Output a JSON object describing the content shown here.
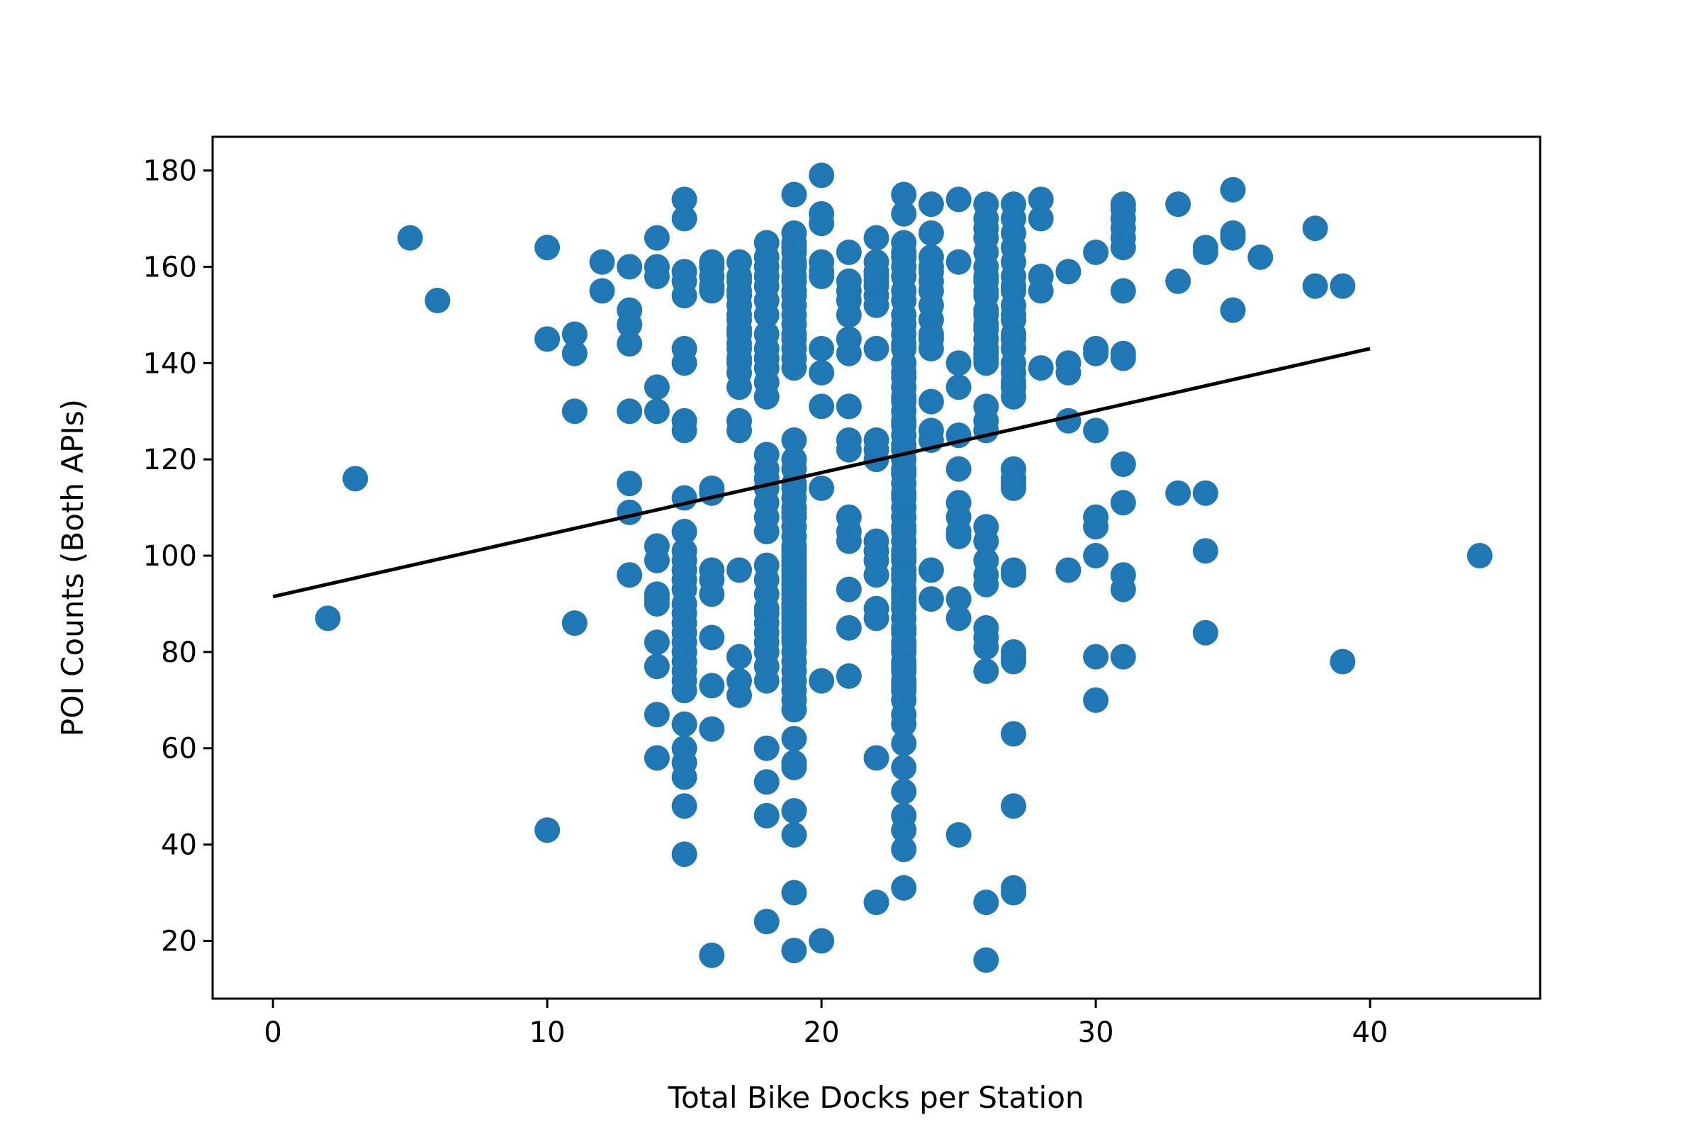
{
  "chart_data": {
    "type": "scatter",
    "title": "",
    "xlabel": "Total Bike Docks per Station",
    "ylabel": "POI Counts (Both APIs)",
    "xlim": [
      -2.2,
      46.2
    ],
    "ylim": [
      8,
      187
    ],
    "xticks": [
      0,
      10,
      20,
      30,
      40
    ],
    "yticks": [
      20,
      40,
      60,
      80,
      100,
      120,
      140,
      160,
      180
    ],
    "grid": false,
    "legend": "none",
    "point_color": "#1f77b4",
    "line_color": "#000000",
    "trend_line": {
      "x": [
        0,
        40
      ],
      "y": [
        91.5,
        143
      ]
    },
    "points": {
      "x": [
        2,
        3,
        5,
        6,
        10,
        10,
        10,
        11,
        11,
        11,
        11,
        12,
        12,
        13,
        13,
        13,
        13,
        13,
        13,
        13,
        13,
        14,
        14,
        14,
        14,
        14,
        14,
        14,
        14,
        14,
        14,
        14,
        14,
        14,
        14,
        15,
        15,
        15,
        15,
        15,
        15,
        15,
        15,
        15,
        15,
        15,
        15,
        15,
        15,
        15,
        15,
        15,
        15,
        15,
        15,
        15,
        15,
        15,
        15,
        15,
        15,
        15,
        15,
        15,
        15,
        15,
        15,
        16,
        16,
        16,
        16,
        16,
        16,
        16,
        16,
        16,
        16,
        16,
        16,
        16,
        16,
        17,
        17,
        17,
        17,
        17,
        17,
        17,
        17,
        17,
        17,
        17,
        17,
        17,
        17,
        17,
        17,
        17,
        17,
        17,
        17,
        17,
        17,
        18,
        18,
        18,
        18,
        18,
        18,
        18,
        18,
        18,
        18,
        18,
        18,
        18,
        18,
        18,
        18,
        18,
        18,
        18,
        18,
        18,
        18,
        18,
        18,
        18,
        18,
        18,
        18,
        18,
        18,
        18,
        18,
        18,
        18,
        18,
        19,
        19,
        19,
        19,
        19,
        19,
        19,
        19,
        19,
        19,
        19,
        19,
        19,
        19,
        19,
        19,
        19,
        19,
        19,
        19,
        19,
        19,
        19,
        19,
        19,
        19,
        19,
        19,
        19,
        19,
        19,
        19,
        19,
        19,
        19,
        19,
        19,
        19,
        19,
        19,
        19,
        19,
        19,
        19,
        19,
        19,
        19,
        19,
        19,
        19,
        19,
        19,
        19,
        19,
        19,
        19,
        19,
        19,
        19,
        19,
        19,
        19,
        19,
        19,
        19,
        20,
        20,
        20,
        20,
        20,
        20,
        20,
        20,
        20,
        20,
        20,
        20,
        21,
        21,
        21,
        21,
        21,
        21,
        21,
        21,
        21,
        21,
        21,
        21,
        21,
        21,
        21,
        21,
        22,
        22,
        22,
        22,
        22,
        22,
        22,
        22,
        22,
        22,
        22,
        22,
        22,
        22,
        22,
        22,
        22,
        22,
        22,
        22,
        23,
        23,
        23,
        23,
        23,
        23,
        23,
        23,
        23,
        23,
        23,
        23,
        23,
        23,
        23,
        23,
        23,
        23,
        23,
        23,
        23,
        23,
        23,
        23,
        23,
        23,
        23,
        23,
        23,
        23,
        23,
        23,
        23,
        23,
        23,
        23,
        23,
        23,
        23,
        23,
        23,
        23,
        23,
        23,
        23,
        23,
        23,
        23,
        23,
        23,
        23,
        23,
        23,
        23,
        23,
        23,
        23,
        23,
        23,
        23,
        23,
        23,
        23,
        23,
        23,
        23,
        23,
        23,
        23,
        23,
        24,
        24,
        24,
        24,
        24,
        24,
        24,
        24,
        24,
        24,
        24,
        24,
        24,
        24,
        24,
        24,
        24,
        25,
        25,
        25,
        25,
        25,
        25,
        25,
        25,
        25,
        25,
        25,
        25,
        25,
        26,
        26,
        26,
        26,
        26,
        26,
        26,
        26,
        26,
        26,
        26,
        26,
        26,
        26,
        26,
        26,
        26,
        26,
        26,
        26,
        26,
        26,
        26,
        26,
        26,
        26,
        26,
        26,
        26,
        26,
        26,
        26,
        26,
        27,
        27,
        27,
        27,
        27,
        27,
        27,
        27,
        27,
        27,
        27,
        27,
        27,
        27,
        27,
        27,
        27,
        27,
        27,
        27,
        27,
        27,
        27,
        27,
        27,
        27,
        27,
        27,
        27,
        27,
        27,
        27,
        28,
        28,
        28,
        28,
        28,
        29,
        29,
        29,
        29,
        29,
        30,
        30,
        30,
        30,
        30,
        30,
        30,
        30,
        30,
        31,
        31,
        31,
        31,
        31,
        31,
        31,
        31,
        31,
        31,
        31,
        31,
        31,
        31,
        33,
        33,
        33,
        34,
        34,
        34,
        34,
        34,
        35,
        35,
        35,
        35,
        36,
        38,
        38,
        39,
        39,
        44
      ],
      "y": [
        87,
        116,
        166,
        153,
        164,
        145,
        43,
        146,
        142,
        130,
        86,
        161,
        155,
        160,
        151,
        148,
        144,
        130,
        115,
        109,
        96,
        166,
        160,
        158,
        135,
        130,
        102,
        99,
        92,
        90,
        82,
        77,
        67,
        58,
        91,
        174,
        170,
        159,
        157,
        154,
        143,
        140,
        128,
        126,
        112,
        105,
        101,
        97,
        95,
        93,
        90,
        88,
        86,
        84,
        82,
        80,
        78,
        76,
        74,
        72,
        65,
        60,
        57,
        54,
        48,
        38,
        99,
        161,
        158,
        155,
        114,
        113,
        97,
        95,
        92,
        83,
        73,
        64,
        17,
        156,
        160,
        161,
        158,
        155,
        152,
        149,
        146,
        143,
        140,
        138,
        135,
        128,
        126,
        97,
        79,
        74,
        71,
        157,
        154,
        150,
        147,
        144,
        141,
        165,
        162,
        158,
        156,
        146,
        143,
        139,
        136,
        133,
        121,
        118,
        114,
        105,
        98,
        95,
        88,
        86,
        82,
        74,
        60,
        53,
        46,
        24,
        160,
        153,
        150,
        141,
        116,
        111,
        108,
        92,
        89,
        84,
        80,
        77,
        175,
        167,
        164,
        161,
        158,
        155,
        152,
        146,
        143,
        139,
        124,
        120,
        115,
        112,
        110,
        108,
        106,
        104,
        102,
        100,
        98,
        96,
        94,
        92,
        90,
        88,
        86,
        84,
        82,
        80,
        78,
        76,
        74,
        72,
        70,
        68,
        62,
        57,
        56,
        47,
        42,
        30,
        18,
        165,
        163,
        160,
        157,
        154,
        150,
        148,
        145,
        141,
        118,
        114,
        109,
        101,
        99,
        97,
        95,
        93,
        91,
        89,
        87,
        85,
        83,
        179,
        171,
        169,
        161,
        159,
        143,
        138,
        131,
        114,
        74,
        20,
        158,
        163,
        157,
        155,
        153,
        145,
        142,
        131,
        124,
        122,
        108,
        105,
        103,
        93,
        85,
        75,
        150,
        166,
        161,
        158,
        156,
        154,
        152,
        143,
        124,
        122,
        120,
        103,
        101,
        99,
        96,
        89,
        87,
        58,
        28,
        159,
        157,
        175,
        171,
        165,
        163,
        160,
        153,
        150,
        146,
        143,
        140,
        137,
        135,
        132,
        130,
        127,
        125,
        122,
        120,
        117,
        115,
        112,
        110,
        108,
        106,
        103,
        101,
        99,
        97,
        95,
        93,
        91,
        89,
        87,
        84,
        82,
        80,
        78,
        76,
        74,
        72,
        70,
        67,
        61,
        56,
        51,
        46,
        43,
        39,
        31,
        162,
        158,
        155,
        148,
        144,
        138,
        133,
        128,
        123,
        118,
        113,
        105,
        100,
        96,
        92,
        90,
        85,
        81,
        77,
        73,
        65,
        173,
        167,
        162,
        160,
        157,
        155,
        149,
        146,
        143,
        132,
        126,
        124,
        97,
        91,
        159,
        152,
        145,
        174,
        161,
        140,
        135,
        125,
        118,
        111,
        108,
        105,
        91,
        87,
        42,
        104,
        173,
        168,
        166,
        160,
        157,
        154,
        151,
        148,
        145,
        142,
        140,
        131,
        128,
        106,
        103,
        96,
        94,
        85,
        81,
        76,
        28,
        16,
        158,
        155,
        150,
        147,
        143,
        126,
        99,
        83,
        170,
        163,
        141,
        173,
        170,
        167,
        164,
        158,
        155,
        152,
        149,
        146,
        143,
        140,
        135,
        133,
        118,
        116,
        114,
        96,
        80,
        78,
        63,
        48,
        31,
        30,
        161,
        156,
        150,
        145,
        138,
        136,
        115,
        97,
        79,
        174,
        170,
        158,
        155,
        139,
        159,
        140,
        138,
        128,
        97,
        163,
        143,
        126,
        108,
        106,
        100,
        79,
        70,
        142,
        173,
        170,
        168,
        166,
        155,
        142,
        141,
        119,
        111,
        96,
        93,
        79,
        172,
        164,
        173,
        157,
        113,
        164,
        163,
        113,
        101,
        84,
        176,
        167,
        166,
        151,
        162,
        168,
        156,
        156,
        78,
        100
      ]
    }
  }
}
